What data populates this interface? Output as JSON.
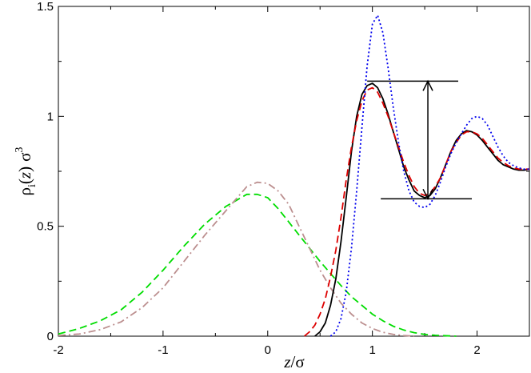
{
  "chart_data": {
    "type": "line",
    "title": "",
    "xlabel": {
      "italic": "z",
      "rest": "/σ"
    },
    "ylabel": {
      "rho": "ρ",
      "sub": "i",
      "open": "(",
      "z": "z",
      "close": ")",
      "sigma": "σ",
      "sup": "3"
    },
    "xlim": [
      -2,
      2.5
    ],
    "ylim": [
      0,
      1.5
    ],
    "xticks": [
      -2,
      -1,
      0,
      1,
      2
    ],
    "xtick_labels": [
      "-2",
      "-1",
      "0",
      "1",
      "2"
    ],
    "yticks": [
      0,
      0.5,
      1,
      1.5
    ],
    "ytick_labels": [
      "0",
      "0.5",
      "1",
      "1.5"
    ],
    "grid": false,
    "legend": "none",
    "series": [
      {
        "color": "#00dd00",
        "style": "dashed",
        "x": [
          -2.0,
          -1.8,
          -1.6,
          -1.4,
          -1.2,
          -1.0,
          -0.8,
          -0.6,
          -0.4,
          -0.2,
          -0.1,
          0.0,
          0.1,
          0.2,
          0.3,
          0.4,
          0.5,
          0.6,
          0.7,
          0.8,
          0.9,
          1.0,
          1.1,
          1.2,
          1.3,
          1.4,
          1.5,
          1.6,
          1.8
        ],
        "y": [
          0.01,
          0.035,
          0.07,
          0.12,
          0.2,
          0.3,
          0.41,
          0.51,
          0.59,
          0.645,
          0.645,
          0.63,
          0.58,
          0.52,
          0.46,
          0.4,
          0.34,
          0.285,
          0.23,
          0.18,
          0.14,
          0.1,
          0.07,
          0.045,
          0.028,
          0.016,
          0.008,
          0.004,
          0.0
        ]
      },
      {
        "color": "#bc8f8f",
        "style": "dash-dot",
        "x": [
          -2.0,
          -1.8,
          -1.6,
          -1.4,
          -1.2,
          -1.0,
          -0.8,
          -0.6,
          -0.4,
          -0.2,
          -0.1,
          0.0,
          0.1,
          0.2,
          0.3,
          0.4,
          0.5,
          0.6,
          0.7,
          0.8,
          0.9,
          1.0,
          1.1,
          1.2,
          1.3,
          1.4
        ],
        "y": [
          0.003,
          0.01,
          0.03,
          0.065,
          0.13,
          0.22,
          0.34,
          0.46,
          0.57,
          0.68,
          0.7,
          0.695,
          0.66,
          0.6,
          0.5,
          0.4,
          0.3,
          0.22,
          0.15,
          0.1,
          0.06,
          0.035,
          0.018,
          0.008,
          0.003,
          0.0
        ]
      },
      {
        "color": "#000000",
        "style": "solid",
        "x": [
          0.45,
          0.5,
          0.55,
          0.6,
          0.65,
          0.7,
          0.75,
          0.8,
          0.85,
          0.9,
          0.95,
          1.0,
          1.05,
          1.1,
          1.15,
          1.2,
          1.25,
          1.3,
          1.35,
          1.4,
          1.45,
          1.5,
          1.55,
          1.6,
          1.65,
          1.7,
          1.75,
          1.8,
          1.85,
          1.9,
          1.95,
          2.0,
          2.05,
          2.1,
          2.15,
          2.2,
          2.25,
          2.3,
          2.35,
          2.4,
          2.45,
          2.5
        ],
        "y": [
          0.0,
          0.02,
          0.06,
          0.14,
          0.26,
          0.43,
          0.63,
          0.84,
          1.0,
          1.1,
          1.14,
          1.15,
          1.13,
          1.08,
          1.01,
          0.93,
          0.85,
          0.77,
          0.71,
          0.66,
          0.64,
          0.63,
          0.64,
          0.67,
          0.72,
          0.78,
          0.84,
          0.89,
          0.92,
          0.935,
          0.93,
          0.915,
          0.89,
          0.86,
          0.83,
          0.8,
          0.78,
          0.77,
          0.76,
          0.755,
          0.755,
          0.76
        ]
      },
      {
        "color": "#dd0000",
        "style": "dashed",
        "x": [
          0.35,
          0.4,
          0.45,
          0.5,
          0.55,
          0.6,
          0.65,
          0.7,
          0.75,
          0.8,
          0.85,
          0.9,
          0.95,
          1.0,
          1.05,
          1.1,
          1.15,
          1.2,
          1.25,
          1.3,
          1.35,
          1.4,
          1.45,
          1.5,
          1.55,
          1.6,
          1.65,
          1.7,
          1.75,
          1.8,
          1.85,
          1.9,
          1.95,
          2.0,
          2.05,
          2.1,
          2.15,
          2.2,
          2.25,
          2.3,
          2.35,
          2.4,
          2.45,
          2.5
        ],
        "y": [
          0.0,
          0.02,
          0.05,
          0.1,
          0.17,
          0.27,
          0.39,
          0.54,
          0.71,
          0.86,
          0.98,
          1.07,
          1.12,
          1.13,
          1.11,
          1.06,
          1.0,
          0.93,
          0.86,
          0.79,
          0.73,
          0.68,
          0.65,
          0.64,
          0.65,
          0.68,
          0.72,
          0.78,
          0.84,
          0.88,
          0.915,
          0.93,
          0.93,
          0.92,
          0.9,
          0.87,
          0.84,
          0.81,
          0.79,
          0.775,
          0.765,
          0.76,
          0.76,
          0.76
        ]
      },
      {
        "color": "#0000ee",
        "style": "dotted",
        "x": [
          0.6,
          0.65,
          0.7,
          0.75,
          0.8,
          0.85,
          0.9,
          0.95,
          1.0,
          1.05,
          1.1,
          1.15,
          1.2,
          1.25,
          1.3,
          1.35,
          1.4,
          1.45,
          1.5,
          1.55,
          1.6,
          1.65,
          1.7,
          1.75,
          1.8,
          1.85,
          1.9,
          1.95,
          2.0,
          2.05,
          2.1,
          2.15,
          2.2,
          2.25,
          2.3,
          2.35,
          2.4,
          2.45,
          2.5
        ],
        "y": [
          0.0,
          0.02,
          0.08,
          0.2,
          0.4,
          0.66,
          0.95,
          1.23,
          1.42,
          1.46,
          1.38,
          1.22,
          1.04,
          0.88,
          0.75,
          0.66,
          0.61,
          0.59,
          0.585,
          0.6,
          0.64,
          0.7,
          0.77,
          0.83,
          0.88,
          0.92,
          0.96,
          0.99,
          1.0,
          0.99,
          0.96,
          0.91,
          0.86,
          0.82,
          0.79,
          0.775,
          0.765,
          0.76,
          0.76
        ]
      }
    ],
    "annotations": {
      "upper_line": {
        "x": [
          0.95,
          1.82
        ],
        "y": 1.16
      },
      "lower_line": {
        "x": [
          1.08,
          1.95
        ],
        "y": 0.625
      },
      "arrow": {
        "x": 1.53,
        "y": [
          0.625,
          1.16
        ]
      }
    }
  }
}
